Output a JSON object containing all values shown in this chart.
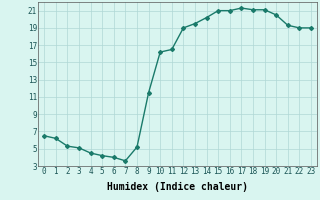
{
  "x": [
    0,
    1,
    2,
    3,
    4,
    5,
    6,
    7,
    8,
    9,
    10,
    11,
    12,
    13,
    14,
    15,
    16,
    17,
    18,
    19,
    20,
    21,
    22,
    23
  ],
  "y": [
    6.5,
    6.2,
    5.3,
    5.1,
    4.5,
    4.2,
    4.0,
    3.6,
    5.2,
    11.5,
    16.2,
    16.5,
    19.0,
    19.5,
    20.2,
    21.0,
    21.0,
    21.3,
    21.1,
    21.1,
    20.5,
    19.3,
    19.0,
    19.0
  ],
  "line_color": "#1a7a6a",
  "marker": "D",
  "marker_size": 2,
  "bg_color": "#d9f5f0",
  "grid_color": "#b0d8d5",
  "xlabel": "Humidex (Indice chaleur)",
  "xlabel_fontsize": 7,
  "ylabel_ticks": [
    3,
    5,
    7,
    9,
    11,
    13,
    15,
    17,
    19,
    21
  ],
  "xlim": [
    -0.5,
    23.5
  ],
  "ylim": [
    3,
    22
  ],
  "xtick_labels": [
    "0",
    "1",
    "2",
    "3",
    "4",
    "5",
    "6",
    "7",
    "8",
    "9",
    "10",
    "11",
    "12",
    "13",
    "14",
    "15",
    "16",
    "17",
    "18",
    "19",
    "20",
    "21",
    "22",
    "23"
  ],
  "tick_fontsize": 5.5,
  "line_width": 1.0
}
